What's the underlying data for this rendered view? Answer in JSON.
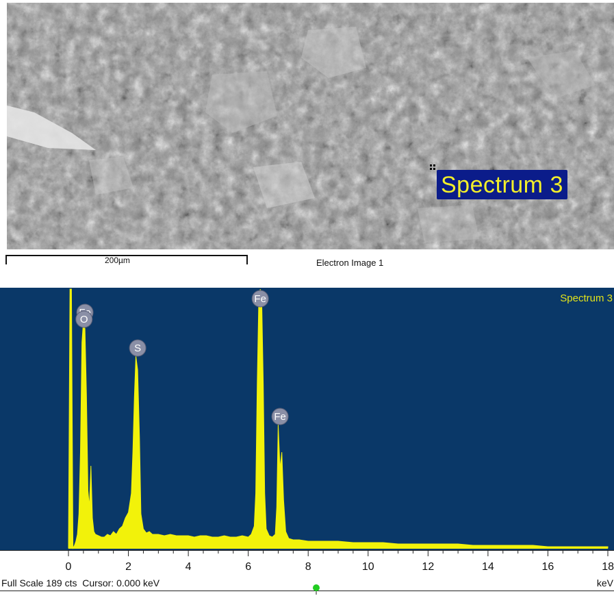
{
  "image": {
    "overlay_label": "Spectrum 3",
    "scale_bar_label": "200µm",
    "caption": "Electron Image 1"
  },
  "chart_data": {
    "type": "line",
    "title": "Spectrum 3",
    "xlabel": "keV",
    "xlim": [
      0,
      18
    ],
    "ylim": [
      0,
      189
    ],
    "x_ticks": [
      0,
      2,
      4,
      6,
      8,
      10,
      12,
      14,
      16,
      18
    ],
    "background_color": "#0a3868",
    "line_color": "#f2f20a",
    "peaks": [
      {
        "element": "Fe",
        "energy_kev": 0.55,
        "label_order": 1
      },
      {
        "element": "O",
        "energy_kev": 0.52,
        "label_order": 2
      },
      {
        "element": "S",
        "energy_kev": 2.31,
        "label_order": 1
      },
      {
        "element": "Fe",
        "energy_kev": 6.4,
        "label_order": 1
      },
      {
        "element": "Fe",
        "energy_kev": 7.06,
        "label_order": 1
      }
    ],
    "series": [
      {
        "name": "Spectrum 3",
        "x": [
          0.0,
          0.05,
          0.1,
          0.15,
          0.2,
          0.25,
          0.3,
          0.35,
          0.4,
          0.45,
          0.5,
          0.55,
          0.6,
          0.65,
          0.7,
          0.75,
          0.8,
          0.85,
          0.9,
          1.0,
          1.1,
          1.2,
          1.3,
          1.4,
          1.5,
          1.6,
          1.7,
          1.8,
          1.9,
          2.0,
          2.1,
          2.15,
          2.2,
          2.25,
          2.31,
          2.37,
          2.42,
          2.5,
          2.6,
          2.7,
          2.8,
          3.0,
          3.2,
          3.4,
          3.6,
          3.8,
          4.0,
          4.2,
          4.4,
          4.6,
          4.8,
          5.0,
          5.2,
          5.4,
          5.6,
          5.8,
          6.0,
          6.1,
          6.2,
          6.25,
          6.3,
          6.35,
          6.4,
          6.45,
          6.5,
          6.55,
          6.6,
          6.7,
          6.8,
          6.9,
          6.95,
          7.0,
          7.06,
          7.12,
          7.18,
          7.25,
          7.35,
          7.5,
          7.7,
          8.0,
          8.5,
          9.0,
          9.5,
          10.0,
          10.5,
          11.0,
          11.5,
          12.0,
          12.5,
          13.0,
          13.5,
          14.0,
          14.5,
          15.0,
          15.5,
          16.0,
          16.5,
          17.0,
          17.5,
          18.0
        ],
        "y": [
          0,
          189,
          189,
          0,
          2,
          5,
          10,
          25,
          70,
          150,
          166,
          160,
          112,
          42,
          30,
          60,
          22,
          12,
          10,
          9,
          8,
          8,
          10,
          9,
          12,
          10,
          14,
          16,
          22,
          26,
          40,
          70,
          110,
          140,
          130,
          80,
          25,
          14,
          11,
          12,
          10,
          10,
          9,
          10,
          9,
          9,
          9,
          8,
          9,
          9,
          8,
          8,
          9,
          8,
          8,
          9,
          8,
          10,
          16,
          40,
          120,
          180,
          189,
          180,
          120,
          40,
          14,
          9,
          8,
          10,
          30,
          90,
          58,
          70,
          35,
          12,
          7,
          6,
          6,
          5,
          5,
          5,
          4,
          4,
          4,
          3,
          3,
          3,
          3,
          3,
          2,
          2,
          2,
          2,
          2,
          1,
          1,
          1,
          1,
          1
        ]
      }
    ],
    "footer": {
      "full_scale": "Full Scale 189 cts",
      "cursor": "Cursor: 0.000 keV",
      "unit": "keV"
    }
  }
}
